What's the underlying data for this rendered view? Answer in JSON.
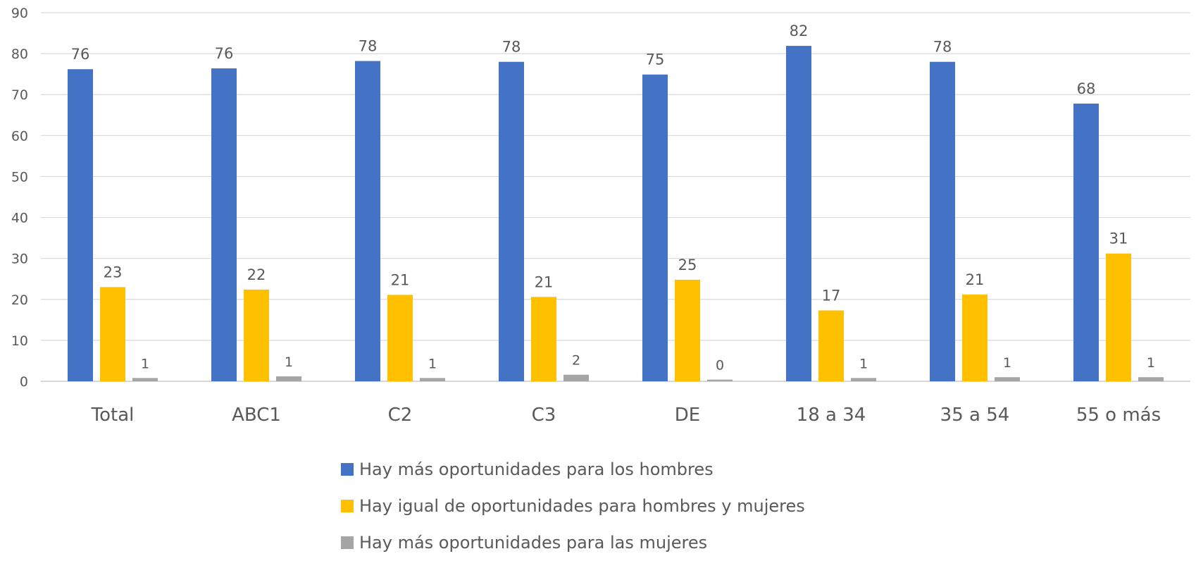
{
  "chart_data": {
    "type": "bar",
    "categories": [
      "Total",
      "ABC1",
      "C2",
      "C3",
      "DE",
      "18 a 34",
      "35 a 54",
      "55 o más"
    ],
    "series": [
      {
        "name": "Hay más oportunidades para los hombres",
        "color": "#4472C4",
        "values": [
          76.2,
          76.4,
          78.2,
          78.0,
          74.9,
          81.9,
          78.0,
          67.8
        ],
        "labels": [
          "76",
          "76",
          "78",
          "78",
          "75",
          "82",
          "78",
          "68"
        ]
      },
      {
        "name": "Hay igual de oportunidades para hombres y mujeres",
        "color": "#FFC000",
        "values": [
          23.0,
          22.4,
          21.1,
          20.6,
          24.8,
          17.3,
          21.2,
          31.2
        ],
        "labels": [
          "23",
          "22",
          "21",
          "21",
          "25",
          "17",
          "21",
          "31"
        ]
      },
      {
        "name": "Hay más oportunidades para las mujeres",
        "color": "#A5A5A5",
        "values": [
          0.8,
          1.2,
          0.8,
          1.6,
          0.4,
          0.8,
          1.0,
          1.0
        ],
        "labels": [
          "1",
          "1",
          "1",
          "2",
          "0",
          "1",
          "1",
          "1"
        ]
      }
    ],
    "yticks": [
      "0",
      "10",
      "20",
      "30",
      "40",
      "50",
      "60",
      "70",
      "80",
      "90"
    ],
    "ylim": [
      0,
      90
    ],
    "grid": true,
    "legend_position": "bottom"
  }
}
